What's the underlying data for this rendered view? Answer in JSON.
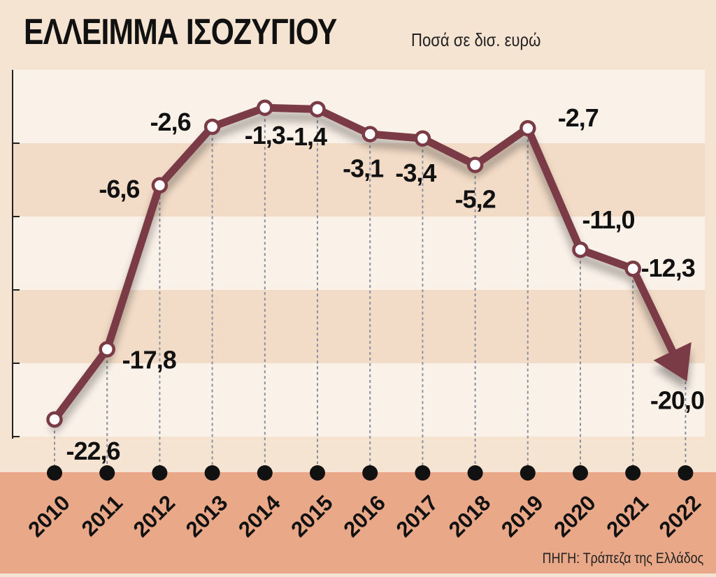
{
  "header": {
    "title": "ΕΛΛΕΙΜΜΑ ΙΣΟΖΥΓΙΟΥ",
    "subtitle": "Ποσά σε δισ. ευρώ"
  },
  "footer": {
    "source": "ΠΗΓΗ: Τράπεζα της Ελλάδος"
  },
  "colors": {
    "background": "#f6e4d2",
    "band_light": "#faf1e8",
    "band_dark": "#f3dcc7",
    "footer_band": "#e9a887",
    "line": "#7a3a46",
    "marker_fill": "#ffffff",
    "text": "#111111"
  },
  "chart_data": {
    "type": "line",
    "title": "ΕΛΛΕΙΜΜΑ ΙΣΟΖΥΓΙΟΥ",
    "subtitle": "Ποσά σε δισ. ευρώ",
    "x": [
      "2010",
      "2011",
      "2012",
      "2013",
      "2014",
      "2015",
      "2016",
      "2017",
      "2018",
      "2019",
      "2020",
      "2021",
      "2022"
    ],
    "series": [
      {
        "values": [
          -22.6,
          -17.8,
          -6.6,
          -2.6,
          -1.3,
          -1.4,
          -3.1,
          -3.4,
          -5.2,
          -2.7,
          -11.0,
          -12.3,
          -20.0
        ],
        "labels": [
          "-22,6",
          "-17,8",
          "-6,6",
          "-2,6",
          "-1,3",
          "-1,4",
          "-3,1",
          "-3,4",
          "-5,2",
          "-2,7",
          "-11,0",
          "-12,3",
          "-20,0"
        ]
      }
    ],
    "last_point_style": "arrow",
    "grid": false,
    "legend": "none"
  }
}
